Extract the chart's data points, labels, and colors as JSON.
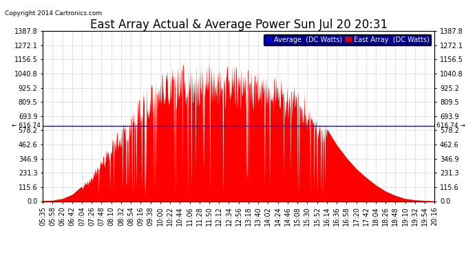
{
  "title": "East Array Actual & Average Power Sun Jul 20 20:31",
  "copyright": "Copyright 2014 Cartronics.com",
  "ylim": [
    0.0,
    1387.8
  ],
  "yticks": [
    0.0,
    115.6,
    231.3,
    346.9,
    462.6,
    578.2,
    693.9,
    809.5,
    925.2,
    1040.8,
    1156.5,
    1272.1,
    1387.8
  ],
  "hline_value": 616.74,
  "hline_label": "616.74",
  "background_color": "#ffffff",
  "grid_color": "#c8c8c8",
  "fill_color": "#ff0000",
  "line_color": "#0000ff",
  "avg_label": "Average  (DC Watts)",
  "east_label": "East Array  (DC Watts)",
  "avg_bg": "#0000cc",
  "east_bg": "#cc0000",
  "title_fontsize": 12,
  "tick_fontsize": 7,
  "x_times": [
    "05:35",
    "05:58",
    "06:20",
    "06:42",
    "07:04",
    "07:26",
    "07:48",
    "08:10",
    "08:32",
    "08:54",
    "09:16",
    "09:38",
    "10:00",
    "10:22",
    "10:44",
    "11:06",
    "11:28",
    "11:50",
    "12:12",
    "12:34",
    "12:56",
    "13:18",
    "13:40",
    "14:02",
    "14:24",
    "14:46",
    "15:08",
    "15:30",
    "15:52",
    "16:14",
    "16:36",
    "16:58",
    "17:20",
    "17:42",
    "18:04",
    "18:26",
    "18:48",
    "19:10",
    "19:32",
    "19:54",
    "20:16"
  ],
  "east_values": [
    5,
    8,
    22,
    55,
    125,
    215,
    340,
    470,
    600,
    720,
    830,
    930,
    1000,
    1050,
    1065,
    1075,
    1065,
    1075,
    1085,
    1070,
    1055,
    1045,
    1025,
    1005,
    985,
    955,
    905,
    825,
    710,
    590,
    460,
    355,
    265,
    195,
    132,
    82,
    47,
    22,
    11,
    6,
    2
  ],
  "avg_value": 616.74
}
